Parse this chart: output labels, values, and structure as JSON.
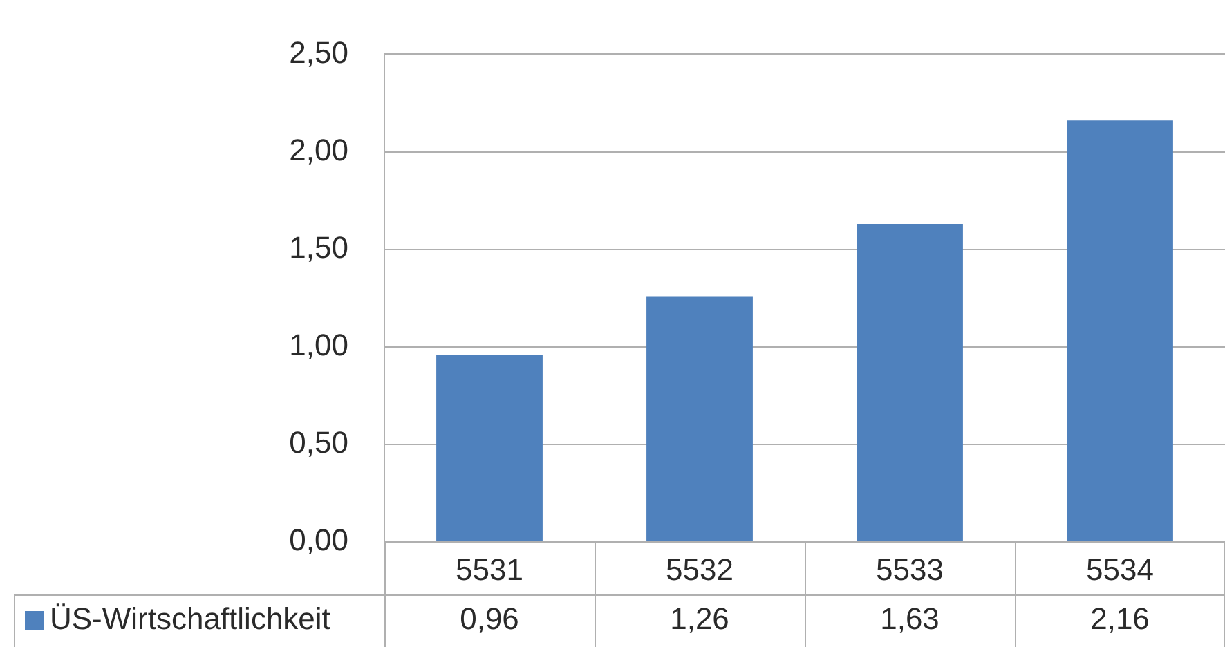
{
  "chart_data": {
    "type": "bar",
    "categories": [
      "5531",
      "5532",
      "5533",
      "5534"
    ],
    "series": [
      {
        "name": "ÜS-Wirtschaftlichkeit",
        "color": "#4f81bd",
        "values": [
          0.96,
          1.26,
          1.63,
          2.16
        ],
        "value_labels": [
          "0,96",
          "1,26",
          "1,63",
          "2,16"
        ]
      }
    ],
    "ylim": [
      0,
      2.5
    ],
    "yticks": [
      {
        "value": 0,
        "label": "0,00"
      },
      {
        "value": 0.5,
        "label": "0,50"
      },
      {
        "value": 1,
        "label": "1,00"
      },
      {
        "value": 1.5,
        "label": "1,50"
      },
      {
        "value": 2,
        "label": "2,00"
      },
      {
        "value": 2.5,
        "label": "2,50"
      }
    ],
    "grid": "y",
    "legend": "bottom left"
  }
}
